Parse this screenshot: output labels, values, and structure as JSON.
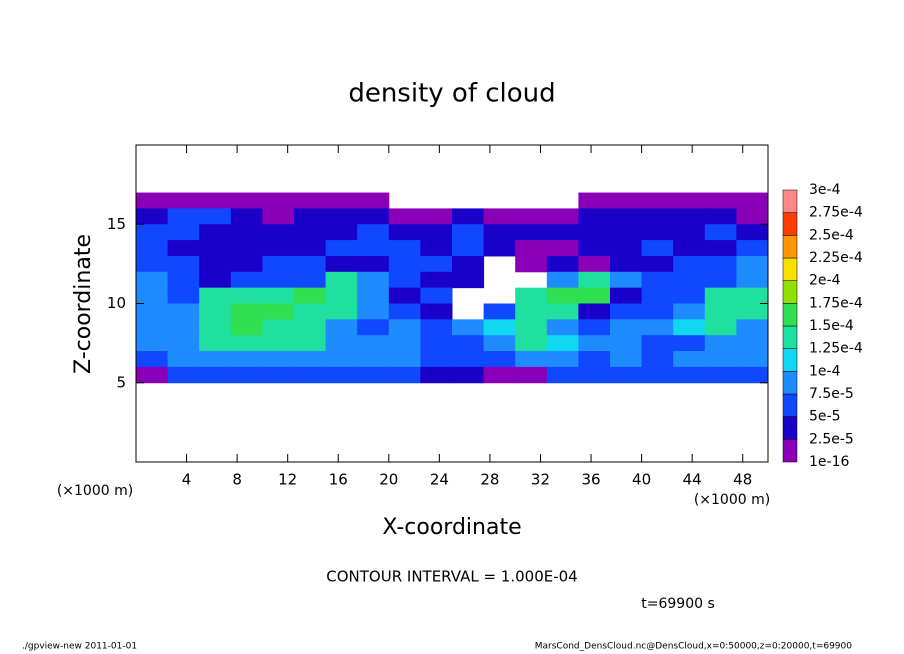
{
  "chart_data": {
    "type": "contour",
    "title": "density of cloud",
    "xlabel": "X-coordinate",
    "ylabel": "Z-coordinate",
    "xunit": "(×1000 m)",
    "yunit": "(×1000 m)",
    "contour_note": "CONTOUR INTERVAL = 1.000E-04",
    "time_note": "t=69900 s",
    "footer_left": "./gpview-new  2011-01-01",
    "footer_right": "MarsCond_DensCloud.nc@DensCloud,x=0:50000,z=0:20000,t=69900",
    "xlim": [
      0,
      50
    ],
    "ylim": [
      0,
      20
    ],
    "xticks": [
      4,
      8,
      12,
      16,
      20,
      24,
      28,
      32,
      36,
      40,
      44,
      48
    ],
    "yticks": [
      5,
      10,
      15
    ],
    "levels": [
      {
        "value": 1e-16,
        "label": "1e-16"
      },
      {
        "value": 2.5e-05,
        "label": "2.5e-5"
      },
      {
        "value": 5e-05,
        "label": "5e-5"
      },
      {
        "value": 7.5e-05,
        "label": "7.5e-5"
      },
      {
        "value": 0.0001,
        "label": "1e-4"
      },
      {
        "value": 0.000125,
        "label": "1.25e-4"
      },
      {
        "value": 0.00015,
        "label": "1.5e-4"
      },
      {
        "value": 0.000175,
        "label": "1.75e-4"
      },
      {
        "value": 0.0002,
        "label": "2e-4"
      },
      {
        "value": 0.000225,
        "label": "2.25e-4"
      },
      {
        "value": 0.00025,
        "label": "2.5e-4"
      },
      {
        "value": 0.000275,
        "label": "2.75e-4"
      },
      {
        "value": 0.0003,
        "label": "3e-4"
      }
    ],
    "colors": [
      "#8a00b8",
      "#1a00c8",
      "#1048ff",
      "#1e8cff",
      "#10d8f0",
      "#20e0a0",
      "#30e050",
      "#90e000",
      "#f8e000",
      "#ff9800",
      "#ff3c00",
      "#ff8888"
    ],
    "x": [
      1.25,
      3.75,
      6.25,
      8.75,
      11.25,
      13.75,
      16.25,
      18.75,
      21.25,
      23.75,
      26.25,
      28.75,
      31.25,
      33.75,
      36.25,
      38.75,
      41.25,
      43.75,
      46.25,
      48.75
    ],
    "y": [
      16.5,
      15.5,
      14.5,
      13.5,
      12.5,
      11.5,
      10.5,
      9.5,
      8.5,
      7.5,
      6.5,
      5.5
    ],
    "values": [
      [
        1e-05,
        1e-05,
        1e-05,
        1e-05,
        1e-05,
        1e-05,
        1e-05,
        1e-05,
        null,
        null,
        null,
        null,
        null,
        null,
        1e-05,
        1e-05,
        1e-05,
        1e-05,
        1e-05,
        1e-05
      ],
      [
        3e-05,
        6e-05,
        6e-05,
        3e-05,
        1e-05,
        3e-05,
        3e-05,
        3e-05,
        1e-05,
        1e-05,
        3e-05,
        1e-05,
        1e-05,
        1e-05,
        3e-05,
        3e-05,
        3e-05,
        3e-05,
        3e-05,
        1e-05
      ],
      [
        6e-05,
        6e-05,
        3e-05,
        3e-05,
        3e-05,
        3e-05,
        3e-05,
        6e-05,
        3e-05,
        3e-05,
        6e-05,
        3e-05,
        3e-05,
        3e-05,
        3e-05,
        3e-05,
        3e-05,
        3e-05,
        6e-05,
        3e-05
      ],
      [
        6e-05,
        3e-05,
        3e-05,
        3e-05,
        3e-05,
        3e-05,
        6e-05,
        6e-05,
        6e-05,
        3e-05,
        6e-05,
        3e-05,
        1e-05,
        1e-05,
        3e-05,
        3e-05,
        6e-05,
        3e-05,
        3e-05,
        6e-05
      ],
      [
        6e-05,
        6e-05,
        3e-05,
        3e-05,
        6e-05,
        6e-05,
        3e-05,
        3e-05,
        6e-05,
        6e-05,
        3e-05,
        null,
        1e-05,
        3e-05,
        1e-05,
        3e-05,
        3e-05,
        6e-05,
        6e-05,
        9e-05
      ],
      [
        9e-05,
        6e-05,
        3e-05,
        6e-05,
        6e-05,
        6e-05,
        0.00014,
        9e-05,
        6e-05,
        3e-05,
        3e-05,
        null,
        null,
        9e-05,
        0.00014,
        9e-05,
        6e-05,
        6e-05,
        6e-05,
        9e-05
      ],
      [
        9e-05,
        6e-05,
        0.00014,
        0.00014,
        0.00014,
        0.00016,
        0.00014,
        9e-05,
        3e-05,
        6e-05,
        null,
        null,
        0.00014,
        0.00016,
        0.00016,
        3e-05,
        6e-05,
        6e-05,
        0.00014,
        0.00014
      ],
      [
        9e-05,
        9e-05,
        0.00014,
        0.00016,
        0.00016,
        0.00014,
        0.00014,
        9e-05,
        6e-05,
        3e-05,
        null,
        6e-05,
        0.00014,
        0.00014,
        3e-05,
        6e-05,
        6e-05,
        9e-05,
        0.00014,
        0.00014
      ],
      [
        9e-05,
        9e-05,
        0.00014,
        0.00016,
        0.00014,
        0.00014,
        9e-05,
        6e-05,
        9e-05,
        6e-05,
        9e-05,
        0.00011,
        0.00014,
        9e-05,
        6e-05,
        9e-05,
        9e-05,
        0.00011,
        0.00014,
        9e-05
      ],
      [
        9e-05,
        9e-05,
        0.00014,
        0.00014,
        0.00014,
        0.00014,
        9e-05,
        9e-05,
        9e-05,
        6e-05,
        6e-05,
        9e-05,
        0.00014,
        0.00011,
        9e-05,
        9e-05,
        6e-05,
        6e-05,
        9e-05,
        9e-05
      ],
      [
        6e-05,
        9e-05,
        9e-05,
        9e-05,
        9e-05,
        9e-05,
        9e-05,
        9e-05,
        9e-05,
        6e-05,
        6e-05,
        6e-05,
        9e-05,
        9e-05,
        6e-05,
        9e-05,
        6e-05,
        9e-05,
        9e-05,
        9e-05
      ],
      [
        1e-05,
        6e-05,
        6e-05,
        6e-05,
        6e-05,
        6e-05,
        6e-05,
        6e-05,
        6e-05,
        3e-05,
        3e-05,
        1e-05,
        1e-05,
        6e-05,
        6e-05,
        6e-05,
        6e-05,
        6e-05,
        6e-05,
        6e-05
      ]
    ]
  }
}
